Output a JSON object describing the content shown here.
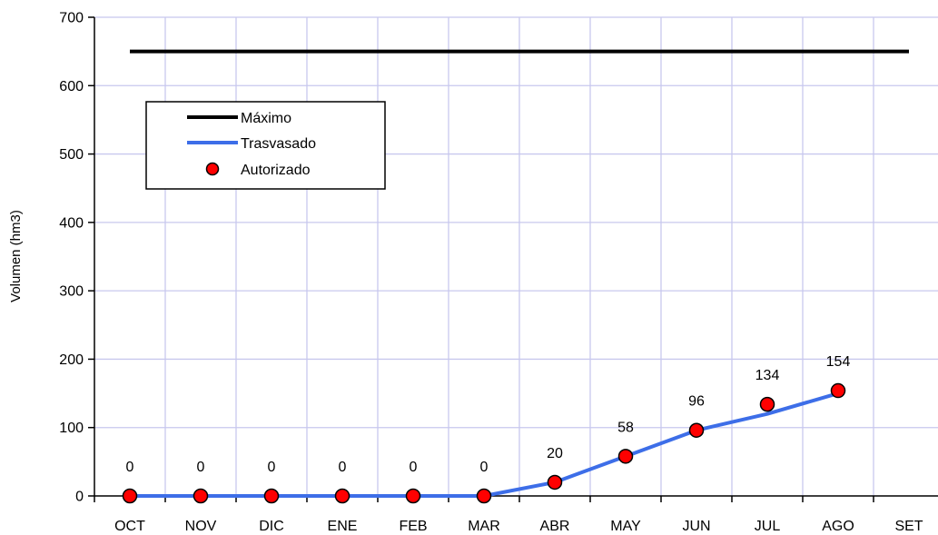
{
  "chart_data": {
    "type": "line",
    "ylabel": "Volumen (hm3)",
    "xlabel": "",
    "title": "",
    "ylim": [
      0,
      700
    ],
    "yticks": [
      0,
      100,
      200,
      300,
      400,
      500,
      600,
      700
    ],
    "categories": [
      "OCT",
      "NOV",
      "DIC",
      "ENE",
      "FEB",
      "MAR",
      "ABR",
      "MAY",
      "JUN",
      "JUL",
      "AGO",
      "SET"
    ],
    "grid": true,
    "legend_position": "top-left",
    "series": [
      {
        "name": "Máximo",
        "kind": "line",
        "color": "#000000",
        "x": [
          "OCT",
          "SET"
        ],
        "values": [
          650,
          650
        ]
      },
      {
        "name": "Trasvasado",
        "kind": "line",
        "color": "#3d6ee8",
        "x": [
          "OCT",
          "NOV",
          "DIC",
          "ENE",
          "FEB",
          "MAR",
          "ABR",
          "MAY",
          "JUN",
          "JUL",
          "AGO"
        ],
        "values": [
          0,
          0,
          0,
          0,
          0,
          0,
          20,
          58,
          96,
          120,
          150
        ]
      },
      {
        "name": "Autorizado",
        "kind": "marker",
        "color": "#ff0000",
        "x": [
          "OCT",
          "NOV",
          "DIC",
          "ENE",
          "FEB",
          "MAR",
          "ABR",
          "MAY",
          "JUN",
          "JUL",
          "AGO"
        ],
        "values": [
          0,
          0,
          0,
          0,
          0,
          0,
          20,
          58,
          96,
          134,
          154
        ],
        "data_labels": [
          "0",
          "0",
          "0",
          "0",
          "0",
          "0",
          "20",
          "58",
          "96",
          "134",
          "154"
        ]
      }
    ]
  }
}
